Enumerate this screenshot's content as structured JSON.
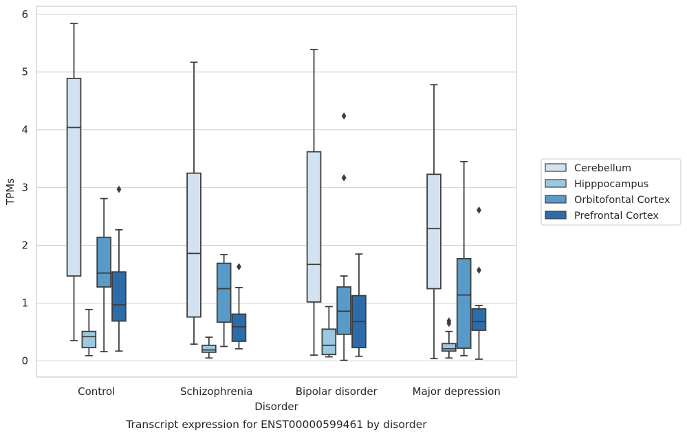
{
  "chart_data": {
    "type": "box",
    "title": "",
    "caption": "Transcript expression for ENST00000599461 by disorder",
    "xlabel": "Disorder",
    "ylabel": "TPMs",
    "ylim": [
      -0.28,
      6.14
    ],
    "yticks": [
      0,
      1,
      2,
      3,
      4,
      5,
      6
    ],
    "grid": "horizontal",
    "legend_position": "right",
    "categories": [
      "Control",
      "Schizophrenia",
      "Bipolar disorder",
      "Major depression"
    ],
    "series": [
      {
        "name": "Cerebellum",
        "color": "#d2e2f1",
        "boxes": [
          {
            "whisker_low": 0.35,
            "q1": 1.47,
            "median": 4.04,
            "q3": 4.89,
            "whisker_high": 5.84,
            "outliers": []
          },
          {
            "whisker_low": 0.29,
            "q1": 0.76,
            "median": 1.86,
            "q3": 3.25,
            "whisker_high": 5.17,
            "outliers": []
          },
          {
            "whisker_low": 0.1,
            "q1": 1.02,
            "median": 1.67,
            "q3": 3.62,
            "whisker_high": 5.39,
            "outliers": []
          },
          {
            "whisker_low": 0.04,
            "q1": 1.25,
            "median": 2.29,
            "q3": 3.23,
            "whisker_high": 4.78,
            "outliers": []
          }
        ]
      },
      {
        "name": "Hipppocampus",
        "color": "#9cc8e1",
        "boxes": [
          {
            "whisker_low": 0.09,
            "q1": 0.23,
            "median": 0.42,
            "q3": 0.51,
            "whisker_high": 0.89,
            "outliers": []
          },
          {
            "whisker_low": 0.05,
            "q1": 0.15,
            "median": 0.19,
            "q3": 0.27,
            "whisker_high": 0.41,
            "outliers": []
          },
          {
            "whisker_low": 0.07,
            "q1": 0.11,
            "median": 0.27,
            "q3": 0.55,
            "whisker_high": 0.94,
            "outliers": []
          },
          {
            "whisker_low": 0.05,
            "q1": 0.17,
            "median": 0.21,
            "q3": 0.3,
            "whisker_high": 0.51,
            "outliers": [
              0.65,
              0.69
            ]
          }
        ]
      },
      {
        "name": "Orbitofontal Cortex",
        "color": "#5a9ac8",
        "boxes": [
          {
            "whisker_low": 0.16,
            "q1": 1.28,
            "median": 1.52,
            "q3": 2.14,
            "whisker_high": 2.81,
            "outliers": []
          },
          {
            "whisker_low": 0.25,
            "q1": 0.67,
            "median": 1.25,
            "q3": 1.69,
            "whisker_high": 1.84,
            "outliers": []
          },
          {
            "whisker_low": 0.01,
            "q1": 0.46,
            "median": 0.86,
            "q3": 1.28,
            "whisker_high": 1.47,
            "outliers": [
              3.17,
              4.24
            ]
          },
          {
            "whisker_low": 0.09,
            "q1": 0.22,
            "median": 1.14,
            "q3": 1.77,
            "whisker_high": 3.45,
            "outliers": []
          }
        ]
      },
      {
        "name": "Prefrontal Cortex",
        "color": "#2d6ca9",
        "boxes": [
          {
            "whisker_low": 0.17,
            "q1": 0.69,
            "median": 0.97,
            "q3": 1.54,
            "whisker_high": 2.27,
            "outliers": [
              2.97
            ]
          },
          {
            "whisker_low": 0.21,
            "q1": 0.34,
            "median": 0.59,
            "q3": 0.81,
            "whisker_high": 1.27,
            "outliers": [
              1.63
            ]
          },
          {
            "whisker_low": 0.08,
            "q1": 0.23,
            "median": 0.68,
            "q3": 1.13,
            "whisker_high": 1.85,
            "outliers": []
          },
          {
            "whisker_low": 0.03,
            "q1": 0.53,
            "median": 0.68,
            "q3": 0.9,
            "whisker_high": 0.96,
            "outliers": [
              1.57,
              2.61
            ]
          }
        ]
      }
    ]
  }
}
